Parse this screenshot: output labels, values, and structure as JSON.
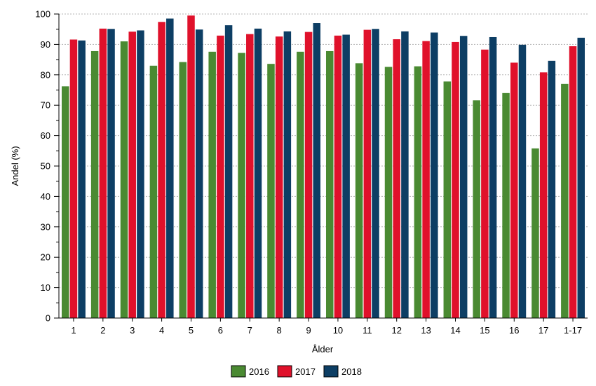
{
  "chart_data": {
    "type": "bar",
    "xlabel": "Ålder",
    "ylabel": "Andel (%)",
    "ylim": [
      0,
      100
    ],
    "yticks": [
      0,
      10,
      20,
      30,
      40,
      50,
      60,
      70,
      80,
      90,
      100
    ],
    "grid": true,
    "legend_position": "bottom",
    "categories": [
      "1",
      "2",
      "3",
      "4",
      "5",
      "6",
      "7",
      "8",
      "9",
      "10",
      "11",
      "12",
      "13",
      "14",
      "15",
      "16",
      "17",
      "1-17"
    ],
    "series": [
      {
        "name": "2016",
        "color": "#4a8a32",
        "values": [
          76.2,
          87.8,
          91.0,
          83.0,
          84.2,
          87.6,
          87.2,
          83.6,
          87.6,
          87.8,
          83.8,
          82.6,
          82.8,
          77.8,
          71.6,
          74.0,
          55.8,
          77.0
        ]
      },
      {
        "name": "2017",
        "color": "#e0112b",
        "values": [
          91.6,
          95.2,
          94.2,
          97.4,
          99.5,
          92.9,
          93.4,
          92.6,
          94.1,
          92.9,
          94.8,
          91.7,
          91.1,
          90.8,
          88.3,
          84.0,
          80.8,
          89.4
        ]
      },
      {
        "name": "2018",
        "color": "#0d3e64",
        "values": [
          91.3,
          95.1,
          94.6,
          98.5,
          94.9,
          96.3,
          95.2,
          94.3,
          97.0,
          93.2,
          95.1,
          94.3,
          93.9,
          92.8,
          92.4,
          89.9,
          84.6,
          92.2
        ]
      }
    ]
  }
}
